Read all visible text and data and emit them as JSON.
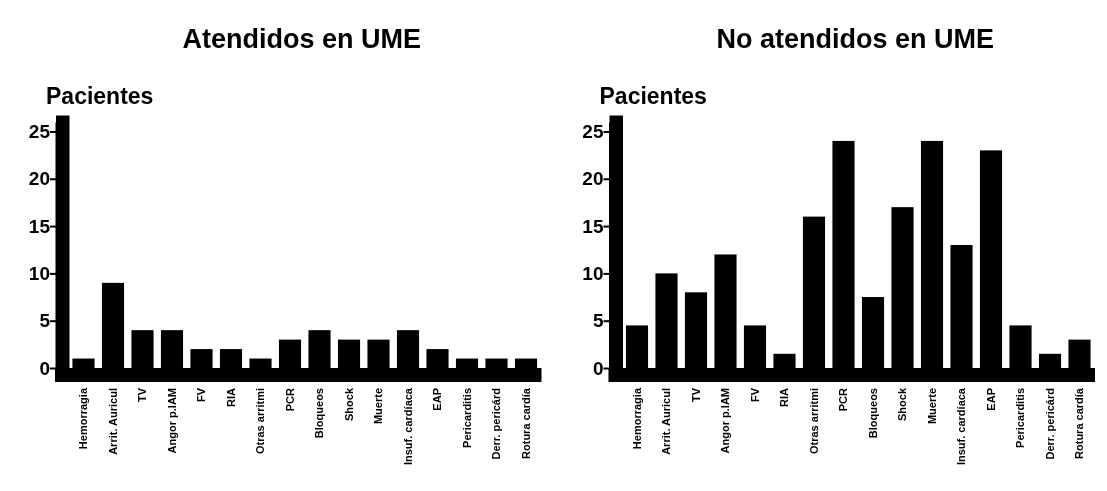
{
  "chart_data": [
    {
      "type": "bar",
      "title": "Atendidos en UME",
      "ylabel": "Pacientes",
      "color": "#000000",
      "ylim": [
        0,
        26
      ],
      "yticks": [
        0,
        5,
        10,
        15,
        20,
        25
      ],
      "categories": [
        "Hemorragia",
        "Arrit. Auricul",
        "TV",
        "Angor p.IAM",
        "FV",
        "RIA",
        "Otras arritmi",
        "PCR",
        "Bloqueos",
        "Shock",
        "Muerte",
        "Insuf. cardíaca",
        "EAP",
        "Pericarditis",
        "Derr. pericárd",
        "Rotura cardía"
      ],
      "values": [
        1,
        9,
        4,
        4,
        2,
        2,
        1,
        3,
        4,
        3,
        3,
        4,
        2,
        1,
        1,
        1
      ]
    },
    {
      "type": "bar",
      "title": "No atendidos en UME",
      "ylabel": "Pacientes",
      "color": "#000000",
      "ylim": [
        0,
        26
      ],
      "yticks": [
        0,
        5,
        10,
        15,
        20,
        25
      ],
      "categories": [
        "Hemorragia",
        "Arrit. Auricul",
        "TV",
        "Angor p.IAM",
        "FV",
        "RIA",
        "Otras arritmi",
        "PCR",
        "Bloqueos",
        "Shock",
        "Muerte",
        "Insuf. cardíaca",
        "EAP",
        "Pericarditis",
        "Derr. pericárd",
        "Rotura cardía"
      ],
      "values": [
        4.5,
        10,
        8,
        12,
        4.5,
        1.5,
        16,
        24,
        7.5,
        17,
        24,
        13,
        23,
        4.5,
        1.5,
        3
      ]
    }
  ]
}
